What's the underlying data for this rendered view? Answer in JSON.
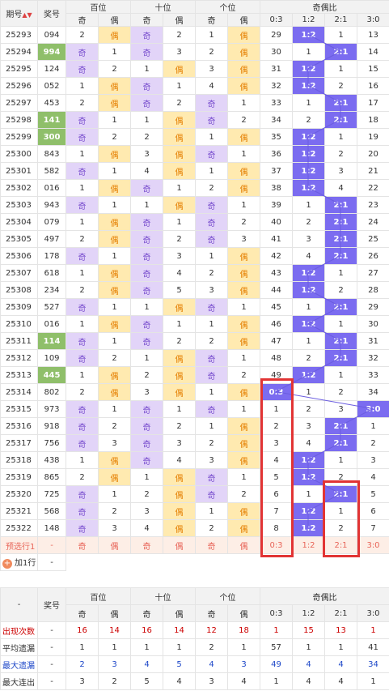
{
  "header": {
    "issue": "期号",
    "prize": "奖号",
    "groups": [
      "百位",
      "十位",
      "个位",
      "奇偶比"
    ],
    "odd": "奇",
    "even": "偶",
    "ratios": [
      "0:3",
      "1:2",
      "2:1",
      "3:0"
    ]
  },
  "rows": [
    {
      "issue": "25293",
      "prize": "094",
      "hl": false,
      "b": [
        "2",
        "偶"
      ],
      "s": [
        "奇",
        "2"
      ],
      "g": [
        "1",
        "偶"
      ],
      "r": [
        "29",
        "1:2",
        "1",
        "13"
      ],
      "hitRatio": 1
    },
    {
      "issue": "25294",
      "prize": "994",
      "hl": true,
      "b": [
        "奇",
        "1"
      ],
      "s": [
        "奇",
        "3"
      ],
      "g": [
        "2",
        "偶"
      ],
      "r": [
        "30",
        "1",
        "2:1",
        "14"
      ],
      "hitRatio": 2
    },
    {
      "issue": "25295",
      "prize": "124",
      "hl": false,
      "b": [
        "奇",
        "2"
      ],
      "s": [
        "1",
        "偶"
      ],
      "g": [
        "3",
        "偶"
      ],
      "r": [
        "31",
        "1:2",
        "1",
        "15"
      ],
      "hitRatio": 1
    },
    {
      "issue": "25296",
      "prize": "052",
      "hl": false,
      "b": [
        "1",
        "偶"
      ],
      "s": [
        "奇",
        "1"
      ],
      "g": [
        "4",
        "偶"
      ],
      "r": [
        "32",
        "1:2",
        "2",
        "16"
      ],
      "hitRatio": 1
    },
    {
      "issue": "25297",
      "prize": "453",
      "hl": false,
      "b": [
        "2",
        "偶"
      ],
      "s": [
        "奇",
        "2"
      ],
      "g": [
        "奇",
        "1"
      ],
      "r": [
        "33",
        "1",
        "2:1",
        "17"
      ],
      "hitRatio": 2
    },
    {
      "issue": "25298",
      "prize": "141",
      "hl": true,
      "b": [
        "奇",
        "1"
      ],
      "s": [
        "1",
        "偶"
      ],
      "g": [
        "奇",
        "2"
      ],
      "r": [
        "34",
        "2",
        "2:1",
        "18"
      ],
      "hitRatio": 2
    },
    {
      "issue": "25299",
      "prize": "300",
      "hl": true,
      "b": [
        "奇",
        "2"
      ],
      "s": [
        "2",
        "偶"
      ],
      "g": [
        "1",
        "偶"
      ],
      "r": [
        "35",
        "1:2",
        "1",
        "19"
      ],
      "hitRatio": 1
    },
    {
      "issue": "25300",
      "prize": "843",
      "hl": false,
      "b": [
        "1",
        "偶"
      ],
      "s": [
        "3",
        "偶"
      ],
      "g": [
        "奇",
        "1"
      ],
      "r": [
        "36",
        "1:2",
        "2",
        "20"
      ],
      "hitRatio": 1
    },
    {
      "issue": "25301",
      "prize": "582",
      "hl": false,
      "b": [
        "奇",
        "1"
      ],
      "s": [
        "4",
        "偶"
      ],
      "g": [
        "1",
        "偶"
      ],
      "r": [
        "37",
        "1:2",
        "3",
        "21"
      ],
      "hitRatio": 1
    },
    {
      "issue": "25302",
      "prize": "016",
      "hl": false,
      "b": [
        "1",
        "偶"
      ],
      "s": [
        "奇",
        "1"
      ],
      "g": [
        "2",
        "偶"
      ],
      "r": [
        "38",
        "1:2",
        "4",
        "22"
      ],
      "hitRatio": 1
    },
    {
      "issue": "25303",
      "prize": "943",
      "hl": false,
      "b": [
        "奇",
        "1"
      ],
      "s": [
        "1",
        "偶"
      ],
      "g": [
        "奇",
        "1"
      ],
      "r": [
        "39",
        "1",
        "2:1",
        "23"
      ],
      "hitRatio": 2
    },
    {
      "issue": "25304",
      "prize": "079",
      "hl": false,
      "b": [
        "1",
        "偶"
      ],
      "s": [
        "奇",
        "1"
      ],
      "g": [
        "奇",
        "2"
      ],
      "r": [
        "40",
        "2",
        "2:1",
        "24"
      ],
      "hitRatio": 2
    },
    {
      "issue": "25305",
      "prize": "497",
      "hl": false,
      "b": [
        "2",
        "偶"
      ],
      "s": [
        "奇",
        "2"
      ],
      "g": [
        "奇",
        "3"
      ],
      "r": [
        "41",
        "3",
        "2:1",
        "25"
      ],
      "hitRatio": 2
    },
    {
      "issue": "25306",
      "prize": "178",
      "hl": false,
      "b": [
        "奇",
        "1"
      ],
      "s": [
        "奇",
        "3"
      ],
      "g": [
        "1",
        "偶"
      ],
      "r": [
        "42",
        "4",
        "2:1",
        "26"
      ],
      "hitRatio": 2
    },
    {
      "issue": "25307",
      "prize": "618",
      "hl": false,
      "b": [
        "1",
        "偶"
      ],
      "s": [
        "奇",
        "4"
      ],
      "g": [
        "2",
        "偶"
      ],
      "r": [
        "43",
        "1:2",
        "1",
        "27"
      ],
      "hitRatio": 1
    },
    {
      "issue": "25308",
      "prize": "234",
      "hl": false,
      "b": [
        "2",
        "偶"
      ],
      "s": [
        "奇",
        "5"
      ],
      "g": [
        "3",
        "偶"
      ],
      "r": [
        "44",
        "1:2",
        "2",
        "28"
      ],
      "hitRatio": 1
    },
    {
      "issue": "25309",
      "prize": "527",
      "hl": false,
      "b": [
        "奇",
        "1"
      ],
      "s": [
        "1",
        "偶"
      ],
      "g": [
        "奇",
        "1"
      ],
      "r": [
        "45",
        "1",
        "2:1",
        "29"
      ],
      "hitRatio": 2
    },
    {
      "issue": "25310",
      "prize": "016",
      "hl": false,
      "b": [
        "1",
        "偶"
      ],
      "s": [
        "奇",
        "1"
      ],
      "g": [
        "1",
        "偶"
      ],
      "r": [
        "46",
        "1:2",
        "1",
        "30"
      ],
      "hitRatio": 1
    },
    {
      "issue": "25311",
      "prize": "114",
      "hl": true,
      "b": [
        "奇",
        "1"
      ],
      "s": [
        "奇",
        "2"
      ],
      "g": [
        "2",
        "偶"
      ],
      "r": [
        "47",
        "1",
        "2:1",
        "31"
      ],
      "hitRatio": 2
    },
    {
      "issue": "25312",
      "prize": "109",
      "hl": false,
      "b": [
        "奇",
        "2"
      ],
      "s": [
        "1",
        "偶"
      ],
      "g": [
        "奇",
        "1"
      ],
      "r": [
        "48",
        "2",
        "2:1",
        "32"
      ],
      "hitRatio": 2
    },
    {
      "issue": "25313",
      "prize": "445",
      "hl": true,
      "b": [
        "1",
        "偶"
      ],
      "s": [
        "2",
        "偶"
      ],
      "g": [
        "奇",
        "2"
      ],
      "r": [
        "49",
        "1:2",
        "1",
        "33"
      ],
      "hitRatio": 1
    },
    {
      "issue": "25314",
      "prize": "802",
      "hl": false,
      "b": [
        "2",
        "偶"
      ],
      "s": [
        "3",
        "偶"
      ],
      "g": [
        "1",
        "偶"
      ],
      "r": [
        "0:3",
        "1",
        "2",
        "34"
      ],
      "hitRatio": 0
    },
    {
      "issue": "25315",
      "prize": "973",
      "hl": false,
      "b": [
        "奇",
        "1"
      ],
      "s": [
        "奇",
        "1"
      ],
      "g": [
        "奇",
        "1"
      ],
      "r": [
        "1",
        "2",
        "3",
        "3:0"
      ],
      "hitRatio": 3
    },
    {
      "issue": "25316",
      "prize": "918",
      "hl": false,
      "b": [
        "奇",
        "2"
      ],
      "s": [
        "奇",
        "2"
      ],
      "g": [
        "1",
        "偶"
      ],
      "r": [
        "2",
        "3",
        "2:1",
        "1"
      ],
      "hitRatio": 2
    },
    {
      "issue": "25317",
      "prize": "756",
      "hl": false,
      "b": [
        "奇",
        "3"
      ],
      "s": [
        "奇",
        "3"
      ],
      "g": [
        "2",
        "偶"
      ],
      "r": [
        "3",
        "4",
        "2:1",
        "2"
      ],
      "hitRatio": 2
    },
    {
      "issue": "25318",
      "prize": "438",
      "hl": false,
      "b": [
        "1",
        "偶"
      ],
      "s": [
        "奇",
        "4"
      ],
      "g": [
        "3",
        "偶"
      ],
      "r": [
        "4",
        "1:2",
        "1",
        "3"
      ],
      "hitRatio": 1
    },
    {
      "issue": "25319",
      "prize": "865",
      "hl": false,
      "b": [
        "2",
        "偶"
      ],
      "s": [
        "1",
        "偶"
      ],
      "g": [
        "奇",
        "1"
      ],
      "r": [
        "5",
        "1:2",
        "2",
        "4"
      ],
      "hitRatio": 1
    },
    {
      "issue": "25320",
      "prize": "725",
      "hl": false,
      "b": [
        "奇",
        "1"
      ],
      "s": [
        "2",
        "偶"
      ],
      "g": [
        "奇",
        "2"
      ],
      "r": [
        "6",
        "1",
        "2:1",
        "5"
      ],
      "hitRatio": 2
    },
    {
      "issue": "25321",
      "prize": "568",
      "hl": false,
      "b": [
        "奇",
        "2"
      ],
      "s": [
        "3",
        "偶"
      ],
      "g": [
        "1",
        "偶"
      ],
      "r": [
        "7",
        "1:2",
        "1",
        "6"
      ],
      "hitRatio": 1
    },
    {
      "issue": "25322",
      "prize": "148",
      "hl": false,
      "b": [
        "奇",
        "3"
      ],
      "s": [
        "4",
        "偶"
      ],
      "g": [
        "2",
        "偶"
      ],
      "r": [
        "8",
        "1:2",
        "2",
        "7"
      ],
      "hitRatio": 1
    }
  ],
  "preselect": {
    "label": "预选行1",
    "prize": "-",
    "cells": [
      "奇",
      "偶",
      "奇",
      "偶",
      "奇",
      "偶",
      "0:3",
      "1:2",
      "2:1",
      "3:0"
    ]
  },
  "addRow": {
    "label": "加1行",
    "dash": "-"
  },
  "stats": {
    "corner": "-",
    "prize": "奖号",
    "rows": [
      {
        "label": "出现次数",
        "dash": "-",
        "vals": [
          "16",
          "14",
          "16",
          "14",
          "12",
          "18",
          "1",
          "15",
          "13",
          "1"
        ],
        "cls": "red"
      },
      {
        "label": "平均遗漏",
        "dash": "-",
        "vals": [
          "1",
          "1",
          "1",
          "1",
          "2",
          "1",
          "57",
          "1",
          "1",
          "41"
        ],
        "cls": "dark"
      },
      {
        "label": "最大遗漏",
        "dash": "-",
        "vals": [
          "2",
          "3",
          "4",
          "5",
          "4",
          "3",
          "49",
          "4",
          "4",
          "34"
        ],
        "cls": "blue"
      },
      {
        "label": "最大连出",
        "dash": "-",
        "vals": [
          "3",
          "2",
          "5",
          "4",
          "3",
          "4",
          "1",
          "4",
          "4",
          "1"
        ],
        "cls": "dark"
      }
    ]
  },
  "colors": {
    "odd": "#e2d4f8",
    "even": "#ffeab0",
    "ratio": "#7b6cf0",
    "prizeHighlight": "#8fbf6a",
    "redBox": "#e23434"
  }
}
